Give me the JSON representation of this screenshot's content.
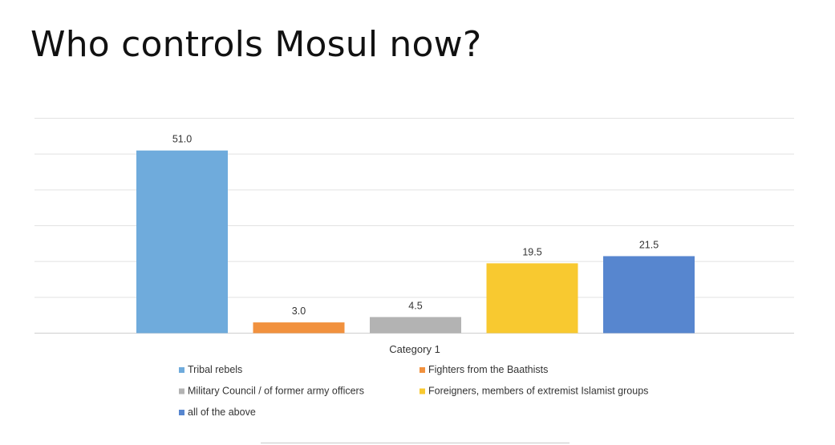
{
  "slide": {
    "title": "Who controls Mosul now?"
  },
  "chart_data": {
    "type": "bar",
    "categories": [
      "Category 1"
    ],
    "series": [
      {
        "name": "Tribal rebels",
        "values": [
          51.0
        ],
        "color": "#6fabdc"
      },
      {
        "name": "Fighters from the Baathists",
        "values": [
          3.0
        ],
        "color": "#f1913e"
      },
      {
        "name": "Military Council / of former army officers",
        "values": [
          4.5
        ],
        "color": "#b3b3b3"
      },
      {
        "name": "Foreigners, members of extremist Islamist groups",
        "values": [
          19.5
        ],
        "color": "#f8c930"
      },
      {
        "name": "all of the above",
        "values": [
          21.5
        ],
        "color": "#5786cf"
      }
    ],
    "data_labels": [
      "51.0",
      "3.0",
      "4.5",
      "19.5",
      "21.5"
    ],
    "xlabel": "Category 1",
    "ylim": [
      0,
      60
    ],
    "grid": true,
    "legend": "bottom"
  }
}
